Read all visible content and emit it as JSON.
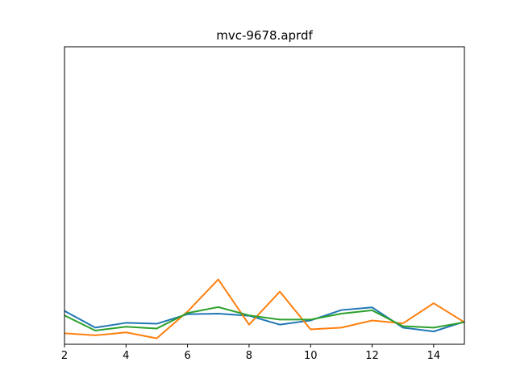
{
  "chart_data": {
    "type": "line",
    "title": "mvc-9678.aprdf",
    "xlabel": "",
    "ylabel": "",
    "xlim": [
      2,
      15
    ],
    "ylim": [
      0,
      10
    ],
    "grid": false,
    "legend": "none",
    "x": [
      2,
      3,
      4,
      5,
      6,
      7,
      8,
      9,
      10,
      11,
      12,
      13,
      14,
      15
    ],
    "xticks": [
      2,
      4,
      6,
      8,
      10,
      12,
      14
    ],
    "series": [
      {
        "color": "#1f77b4",
        "values": [
          1.12,
          0.56,
          0.72,
          0.69,
          1.01,
          1.03,
          0.96,
          0.66,
          0.8,
          1.15,
          1.24,
          0.56,
          0.43,
          0.76
        ]
      },
      {
        "color": "#ff7f0e",
        "values": [
          0.37,
          0.3,
          0.4,
          0.2,
          1.1,
          2.18,
          0.66,
          1.77,
          0.5,
          0.56,
          0.8,
          0.7,
          1.38,
          0.74
        ]
      },
      {
        "color": "#2ca02c",
        "values": [
          0.97,
          0.46,
          0.59,
          0.53,
          1.05,
          1.25,
          0.97,
          0.83,
          0.83,
          1.03,
          1.14,
          0.61,
          0.56,
          0.74
        ]
      }
    ]
  }
}
